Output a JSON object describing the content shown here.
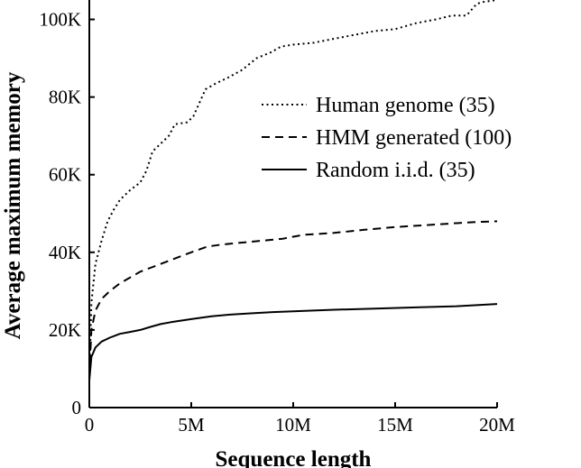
{
  "chart_data": {
    "type": "line",
    "title": "",
    "xlabel": "Sequence length",
    "ylabel": "Average maximum memory",
    "xlim": [
      0,
      20000000
    ],
    "ylim": [
      0,
      105000
    ],
    "x_ticks": [
      {
        "value": 0,
        "label": "0"
      },
      {
        "value": 5000000,
        "label": "5M"
      },
      {
        "value": 10000000,
        "label": "10M"
      },
      {
        "value": 15000000,
        "label": "15M"
      },
      {
        "value": 20000000,
        "label": "20M"
      }
    ],
    "y_ticks": [
      {
        "value": 0,
        "label": "0"
      },
      {
        "value": 20000,
        "label": "20K"
      },
      {
        "value": 40000,
        "label": "40K"
      },
      {
        "value": 60000,
        "label": "60K"
      },
      {
        "value": 80000,
        "label": "80K"
      },
      {
        "value": 100000,
        "label": "100K"
      }
    ],
    "grid": false,
    "legend_position": "center-right",
    "series": [
      {
        "name": "Human genome (35)",
        "style": "dotted",
        "color": "#000000",
        "x": [
          0,
          100000,
          300000,
          600000,
          900000,
          1200000,
          1500000,
          2000000,
          2500000,
          2800000,
          3100000,
          3500000,
          3900000,
          4200000,
          4800000,
          5100000,
          5700000,
          6200000,
          6800000,
          7500000,
          8200000,
          8900000,
          9400000,
          10000000,
          11000000,
          12000000,
          13000000,
          14000000,
          15000000,
          16000000,
          17000000,
          17800000,
          18500000,
          19000000,
          19300000,
          20000000
        ],
        "y": [
          7000,
          27000,
          37000,
          43000,
          48000,
          51000,
          53500,
          56000,
          58000,
          61000,
          66000,
          68000,
          70000,
          73000,
          73500,
          75000,
          82000,
          83500,
          85000,
          87000,
          90000,
          91500,
          93000,
          93500,
          94000,
          95000,
          96000,
          97000,
          97500,
          99000,
          100000,
          101000,
          101000,
          104000,
          104500,
          105000
        ]
      },
      {
        "name": "HMM generated (100)",
        "style": "dashed",
        "color": "#000000",
        "x": [
          0,
          100000,
          300000,
          600000,
          1000000,
          1500000,
          2000000,
          2500000,
          3000000,
          3500000,
          4000000,
          5000000,
          5800000,
          6500000,
          7500000,
          8500000,
          9500000,
          10500000,
          12000000,
          13500000,
          15000000,
          16500000,
          18000000,
          19000000,
          20000000
        ],
        "y": [
          8000,
          20000,
          25000,
          28000,
          30000,
          32000,
          33500,
          35000,
          36000,
          37000,
          38000,
          40000,
          41500,
          42000,
          42500,
          43000,
          43500,
          44500,
          45000,
          45800,
          46500,
          47000,
          47500,
          47800,
          48000
        ]
      },
      {
        "name": "Random i.i.d. (35)",
        "style": "solid",
        "color": "#000000",
        "x": [
          0,
          100000,
          300000,
          600000,
          1000000,
          1500000,
          2000000,
          2500000,
          3000000,
          3500000,
          4000000,
          5000000,
          6000000,
          7000000,
          8000000,
          9000000,
          10000000,
          12000000,
          14000000,
          16000000,
          18000000,
          19000000,
          20000000
        ],
        "y": [
          7000,
          13000,
          15500,
          17000,
          18000,
          19000,
          19500,
          20000,
          20800,
          21500,
          22000,
          22800,
          23500,
          24000,
          24300,
          24600,
          24800,
          25200,
          25500,
          25800,
          26100,
          26400,
          26700
        ]
      }
    ]
  }
}
